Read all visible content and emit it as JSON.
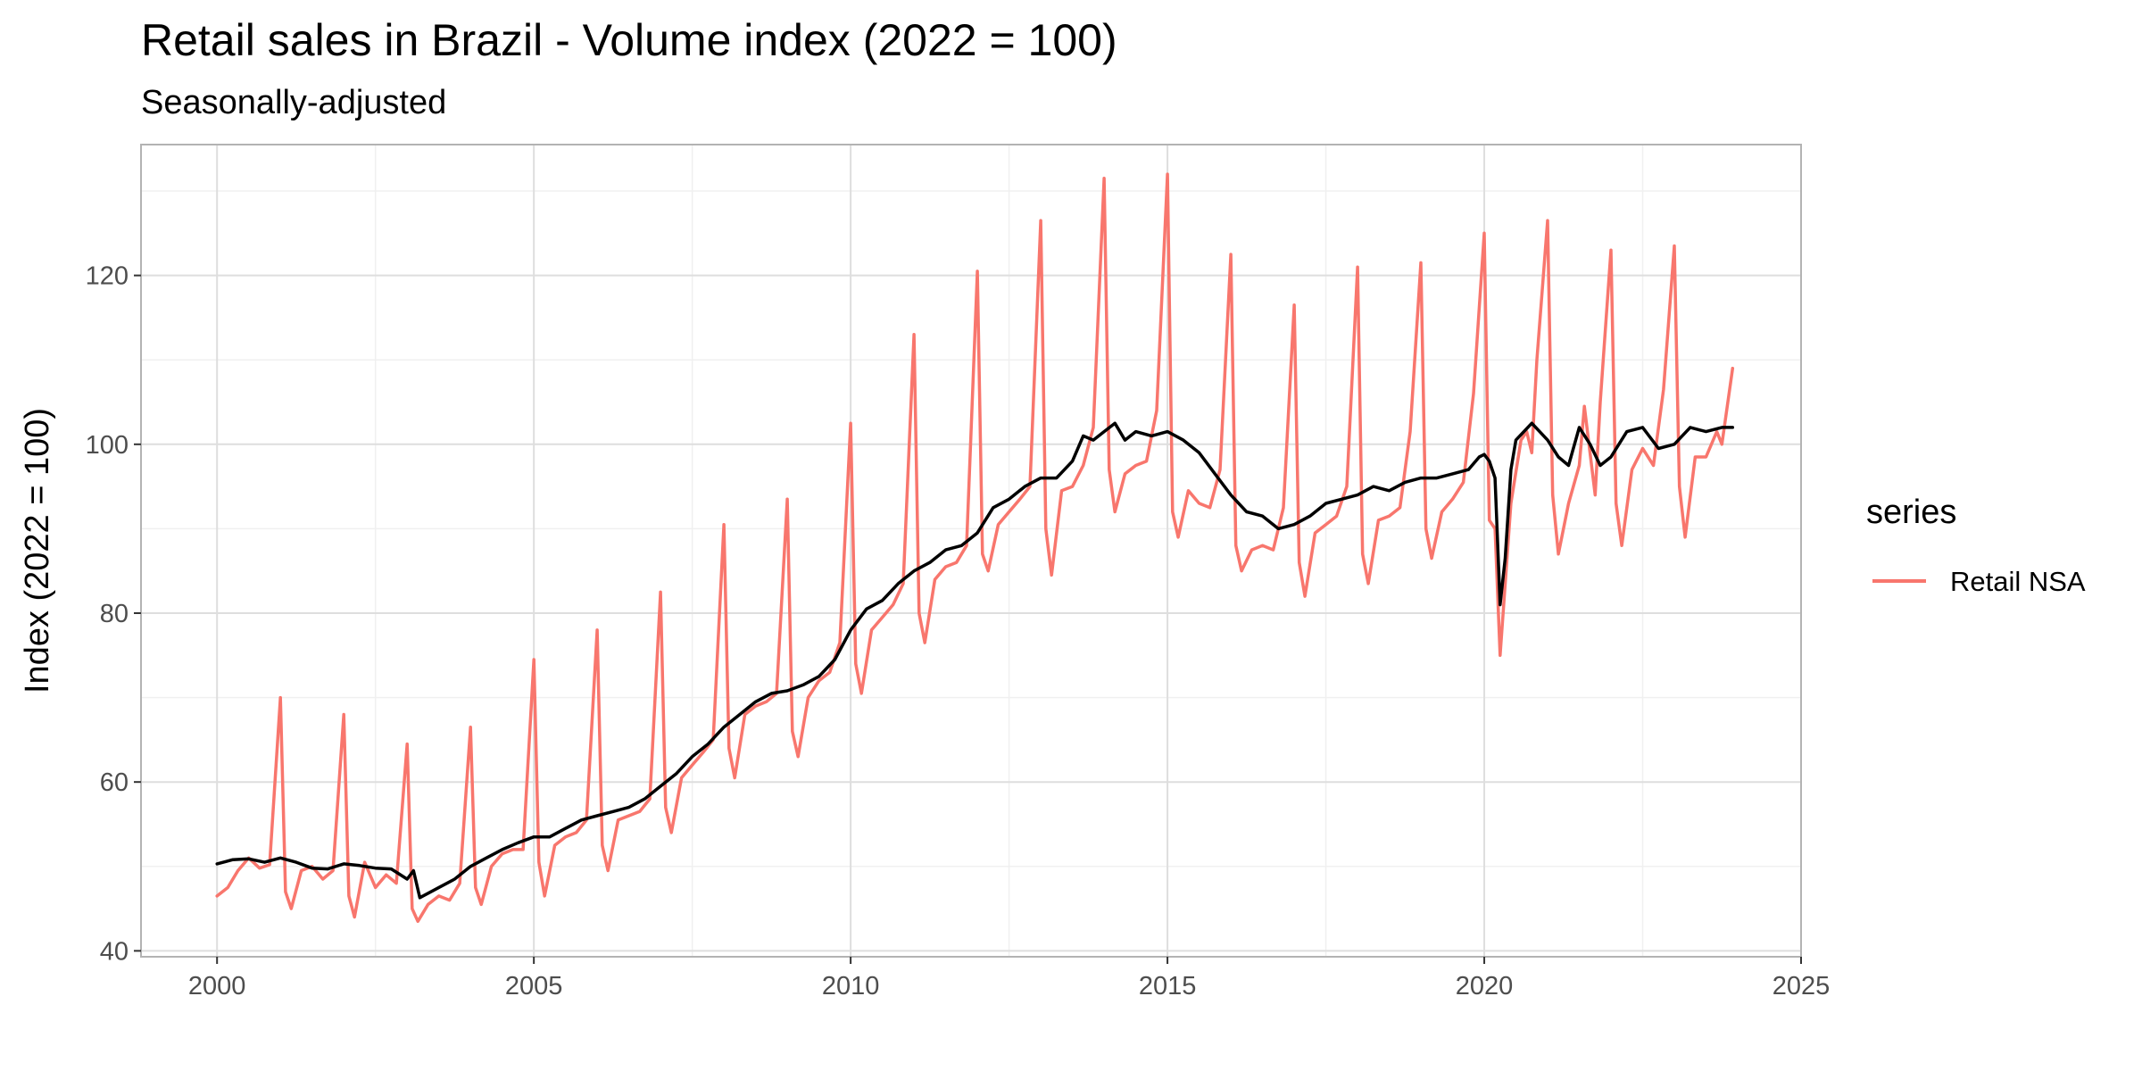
{
  "chart_data": {
    "type": "line",
    "title": "Retail sales in Brazil - Volume index (2022 = 100)",
    "subtitle": "Seasonally-adjusted",
    "xlabel": "",
    "ylabel": "Index (2022 = 100)",
    "xlim": [
      1998.8,
      2025.0
    ],
    "ylim": [
      39.3,
      135.5
    ],
    "x_ticks": [
      2000,
      2005,
      2010,
      2015,
      2020,
      2025
    ],
    "y_ticks": [
      40,
      60,
      80,
      100,
      120
    ],
    "grid": true,
    "legend": {
      "title": "series",
      "position": "right"
    },
    "series": [
      {
        "name": "Retail NSA",
        "color": "#F8766D",
        "points": [
          [
            2000.0,
            46.5
          ],
          [
            2000.17,
            47.5
          ],
          [
            2000.33,
            49.5
          ],
          [
            2000.5,
            51.0
          ],
          [
            2000.67,
            49.8
          ],
          [
            2000.83,
            50.2
          ],
          [
            2001.0,
            70.0
          ],
          [
            2001.08,
            47.0
          ],
          [
            2001.17,
            45.0
          ],
          [
            2001.33,
            49.5
          ],
          [
            2001.5,
            50.0
          ],
          [
            2001.67,
            48.5
          ],
          [
            2001.83,
            49.5
          ],
          [
            2002.0,
            68.0
          ],
          [
            2002.08,
            46.5
          ],
          [
            2002.17,
            44.0
          ],
          [
            2002.33,
            50.5
          ],
          [
            2002.5,
            47.5
          ],
          [
            2002.67,
            49.0
          ],
          [
            2002.83,
            48.0
          ],
          [
            2003.0,
            64.5
          ],
          [
            2003.08,
            45.0
          ],
          [
            2003.17,
            43.5
          ],
          [
            2003.33,
            45.5
          ],
          [
            2003.5,
            46.5
          ],
          [
            2003.67,
            46.0
          ],
          [
            2003.83,
            48.0
          ],
          [
            2004.0,
            66.5
          ],
          [
            2004.08,
            47.5
          ],
          [
            2004.17,
            45.5
          ],
          [
            2004.33,
            50.0
          ],
          [
            2004.5,
            51.5
          ],
          [
            2004.67,
            52.0
          ],
          [
            2004.83,
            52.0
          ],
          [
            2005.0,
            74.5
          ],
          [
            2005.08,
            50.5
          ],
          [
            2005.17,
            46.5
          ],
          [
            2005.33,
            52.5
          ],
          [
            2005.5,
            53.5
          ],
          [
            2005.67,
            54.0
          ],
          [
            2005.83,
            55.5
          ],
          [
            2006.0,
            78.0
          ],
          [
            2006.08,
            52.5
          ],
          [
            2006.17,
            49.5
          ],
          [
            2006.33,
            55.5
          ],
          [
            2006.5,
            56.0
          ],
          [
            2006.67,
            56.5
          ],
          [
            2006.83,
            58.0
          ],
          [
            2007.0,
            82.5
          ],
          [
            2007.08,
            57.0
          ],
          [
            2007.17,
            54.0
          ],
          [
            2007.33,
            60.5
          ],
          [
            2007.5,
            62.0
          ],
          [
            2007.67,
            63.5
          ],
          [
            2007.83,
            65.0
          ],
          [
            2008.0,
            90.5
          ],
          [
            2008.08,
            64.0
          ],
          [
            2008.17,
            60.5
          ],
          [
            2008.33,
            68.0
          ],
          [
            2008.5,
            69.0
          ],
          [
            2008.67,
            69.5
          ],
          [
            2008.83,
            70.5
          ],
          [
            2009.0,
            93.5
          ],
          [
            2009.08,
            66.0
          ],
          [
            2009.17,
            63.0
          ],
          [
            2009.33,
            70.0
          ],
          [
            2009.5,
            72.0
          ],
          [
            2009.67,
            73.0
          ],
          [
            2009.83,
            76.5
          ],
          [
            2010.0,
            102.5
          ],
          [
            2010.08,
            74.0
          ],
          [
            2010.17,
            70.5
          ],
          [
            2010.33,
            78.0
          ],
          [
            2010.5,
            79.5
          ],
          [
            2010.67,
            81.0
          ],
          [
            2010.83,
            83.5
          ],
          [
            2011.0,
            113.0
          ],
          [
            2011.08,
            80.0
          ],
          [
            2011.17,
            76.5
          ],
          [
            2011.33,
            84.0
          ],
          [
            2011.5,
            85.5
          ],
          [
            2011.67,
            86.0
          ],
          [
            2011.83,
            88.0
          ],
          [
            2012.0,
            120.5
          ],
          [
            2012.08,
            87.0
          ],
          [
            2012.17,
            85.0
          ],
          [
            2012.33,
            90.5
          ],
          [
            2012.5,
            92.0
          ],
          [
            2012.67,
            93.5
          ],
          [
            2012.83,
            95.0
          ],
          [
            2013.0,
            126.5
          ],
          [
            2013.08,
            90.0
          ],
          [
            2013.17,
            84.5
          ],
          [
            2013.33,
            94.5
          ],
          [
            2013.5,
            95.0
          ],
          [
            2013.67,
            97.5
          ],
          [
            2013.83,
            102.0
          ],
          [
            2014.0,
            131.5
          ],
          [
            2014.08,
            97.0
          ],
          [
            2014.17,
            92.0
          ],
          [
            2014.33,
            96.5
          ],
          [
            2014.5,
            97.5
          ],
          [
            2014.67,
            98.0
          ],
          [
            2014.83,
            104.0
          ],
          [
            2015.0,
            132.0
          ],
          [
            2015.08,
            92.0
          ],
          [
            2015.17,
            89.0
          ],
          [
            2015.33,
            94.5
          ],
          [
            2015.5,
            93.0
          ],
          [
            2015.67,
            92.5
          ],
          [
            2015.83,
            97.0
          ],
          [
            2016.0,
            122.5
          ],
          [
            2016.08,
            88.0
          ],
          [
            2016.17,
            85.0
          ],
          [
            2016.33,
            87.5
          ],
          [
            2016.5,
            88.0
          ],
          [
            2016.67,
            87.5
          ],
          [
            2016.83,
            92.5
          ],
          [
            2017.0,
            116.5
          ],
          [
            2017.08,
            86.0
          ],
          [
            2017.17,
            82.0
          ],
          [
            2017.33,
            89.5
          ],
          [
            2017.5,
            90.5
          ],
          [
            2017.67,
            91.5
          ],
          [
            2017.83,
            95.0
          ],
          [
            2018.0,
            121.0
          ],
          [
            2018.08,
            87.0
          ],
          [
            2018.17,
            83.5
          ],
          [
            2018.33,
            91.0
          ],
          [
            2018.5,
            91.5
          ],
          [
            2018.67,
            92.5
          ],
          [
            2018.83,
            101.5
          ],
          [
            2019.0,
            121.5
          ],
          [
            2019.08,
            90.0
          ],
          [
            2019.17,
            86.5
          ],
          [
            2019.33,
            92.0
          ],
          [
            2019.5,
            93.5
          ],
          [
            2019.67,
            95.5
          ],
          [
            2019.83,
            106.0
          ],
          [
            2020.0,
            125.0
          ],
          [
            2020.08,
            91.0
          ],
          [
            2020.17,
            90.0
          ],
          [
            2020.25,
            75.0
          ],
          [
            2020.42,
            93.0
          ],
          [
            2020.58,
            100.5
          ],
          [
            2020.67,
            101.5
          ],
          [
            2020.75,
            99.0
          ],
          [
            2020.83,
            110.0
          ],
          [
            2021.0,
            126.5
          ],
          [
            2021.08,
            94.0
          ],
          [
            2021.17,
            87.0
          ],
          [
            2021.33,
            93.0
          ],
          [
            2021.5,
            97.5
          ],
          [
            2021.58,
            104.5
          ],
          [
            2021.75,
            94.0
          ],
          [
            2021.83,
            105.0
          ],
          [
            2022.0,
            123.0
          ],
          [
            2022.08,
            93.0
          ],
          [
            2022.17,
            88.0
          ],
          [
            2022.33,
            97.0
          ],
          [
            2022.5,
            99.5
          ],
          [
            2022.67,
            97.5
          ],
          [
            2022.83,
            106.5
          ],
          [
            2023.0,
            123.5
          ],
          [
            2023.08,
            95.0
          ],
          [
            2023.17,
            89.0
          ],
          [
            2023.33,
            98.5
          ],
          [
            2023.5,
            98.5
          ],
          [
            2023.67,
            101.5
          ],
          [
            2023.75,
            100.0
          ],
          [
            2023.92,
            109.0
          ]
        ]
      },
      {
        "name": "",
        "color": "#000000",
        "points": [
          [
            2000.0,
            50.3
          ],
          [
            2000.25,
            50.8
          ],
          [
            2000.5,
            50.9
          ],
          [
            2000.75,
            50.5
          ],
          [
            2001.0,
            51.0
          ],
          [
            2001.25,
            50.5
          ],
          [
            2001.5,
            49.8
          ],
          [
            2001.75,
            49.7
          ],
          [
            2002.0,
            50.3
          ],
          [
            2002.25,
            50.1
          ],
          [
            2002.5,
            49.8
          ],
          [
            2002.75,
            49.7
          ],
          [
            2003.0,
            48.5
          ],
          [
            2003.1,
            49.5
          ],
          [
            2003.2,
            46.3
          ],
          [
            2003.5,
            47.5
          ],
          [
            2003.75,
            48.5
          ],
          [
            2004.0,
            50.0
          ],
          [
            2004.25,
            51.0
          ],
          [
            2004.5,
            52.0
          ],
          [
            2004.75,
            52.8
          ],
          [
            2005.0,
            53.5
          ],
          [
            2005.25,
            53.5
          ],
          [
            2005.5,
            54.5
          ],
          [
            2005.75,
            55.5
          ],
          [
            2006.0,
            56.0
          ],
          [
            2006.25,
            56.5
          ],
          [
            2006.5,
            57.0
          ],
          [
            2006.75,
            58.0
          ],
          [
            2007.0,
            59.5
          ],
          [
            2007.25,
            61.0
          ],
          [
            2007.5,
            63.0
          ],
          [
            2007.75,
            64.5
          ],
          [
            2008.0,
            66.5
          ],
          [
            2008.25,
            68.0
          ],
          [
            2008.5,
            69.5
          ],
          [
            2008.75,
            70.5
          ],
          [
            2009.0,
            70.8
          ],
          [
            2009.25,
            71.5
          ],
          [
            2009.5,
            72.5
          ],
          [
            2009.75,
            74.5
          ],
          [
            2010.0,
            78.0
          ],
          [
            2010.25,
            80.5
          ],
          [
            2010.5,
            81.5
          ],
          [
            2010.75,
            83.5
          ],
          [
            2011.0,
            85.0
          ],
          [
            2011.25,
            86.0
          ],
          [
            2011.5,
            87.5
          ],
          [
            2011.75,
            88.0
          ],
          [
            2012.0,
            89.5
          ],
          [
            2012.25,
            92.5
          ],
          [
            2012.5,
            93.5
          ],
          [
            2012.75,
            95.0
          ],
          [
            2013.0,
            96.0
          ],
          [
            2013.25,
            96.0
          ],
          [
            2013.5,
            98.0
          ],
          [
            2013.67,
            101.0
          ],
          [
            2013.83,
            100.5
          ],
          [
            2014.0,
            101.5
          ],
          [
            2014.17,
            102.5
          ],
          [
            2014.33,
            100.5
          ],
          [
            2014.5,
            101.5
          ],
          [
            2014.75,
            101.0
          ],
          [
            2015.0,
            101.5
          ],
          [
            2015.25,
            100.5
          ],
          [
            2015.5,
            99.0
          ],
          [
            2015.75,
            96.5
          ],
          [
            2016.0,
            94.0
          ],
          [
            2016.25,
            92.0
          ],
          [
            2016.5,
            91.5
          ],
          [
            2016.75,
            90.0
          ],
          [
            2017.0,
            90.5
          ],
          [
            2017.25,
            91.5
          ],
          [
            2017.5,
            93.0
          ],
          [
            2017.75,
            93.5
          ],
          [
            2018.0,
            94.0
          ],
          [
            2018.25,
            95.0
          ],
          [
            2018.5,
            94.5
          ],
          [
            2018.75,
            95.5
          ],
          [
            2019.0,
            96.0
          ],
          [
            2019.25,
            96.0
          ],
          [
            2019.5,
            96.5
          ],
          [
            2019.75,
            97.0
          ],
          [
            2019.92,
            98.5
          ],
          [
            2020.0,
            98.8
          ],
          [
            2020.08,
            98.0
          ],
          [
            2020.17,
            96.0
          ],
          [
            2020.25,
            81.0
          ],
          [
            2020.33,
            86.5
          ],
          [
            2020.42,
            97.0
          ],
          [
            2020.5,
            100.5
          ],
          [
            2020.75,
            102.5
          ],
          [
            2021.0,
            100.5
          ],
          [
            2021.17,
            98.5
          ],
          [
            2021.33,
            97.5
          ],
          [
            2021.5,
            102.0
          ],
          [
            2021.67,
            100.0
          ],
          [
            2021.83,
            97.5
          ],
          [
            2022.0,
            98.5
          ],
          [
            2022.25,
            101.5
          ],
          [
            2022.5,
            102.0
          ],
          [
            2022.75,
            99.5
          ],
          [
            2023.0,
            100.0
          ],
          [
            2023.25,
            102.0
          ],
          [
            2023.5,
            101.5
          ],
          [
            2023.75,
            102.0
          ],
          [
            2023.92,
            102.0
          ]
        ]
      }
    ]
  }
}
